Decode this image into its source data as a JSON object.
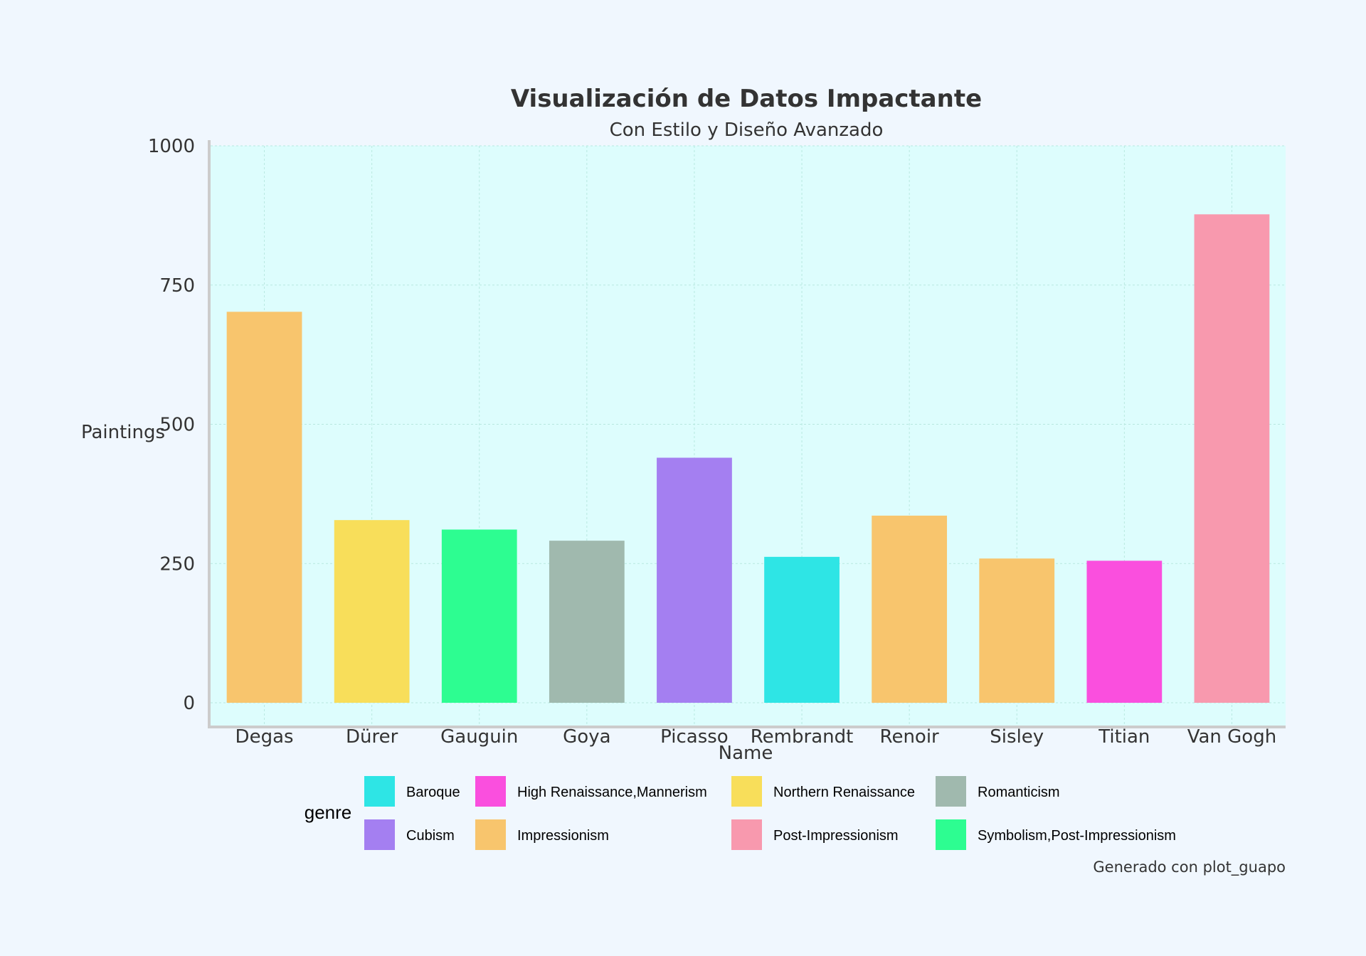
{
  "chart_data": {
    "type": "bar",
    "title": "Visualización de Datos Impactante",
    "subtitle": "Con Estilo y Diseño Avanzado",
    "xlabel": "Name",
    "ylabel": "Paintings",
    "ylim": [
      0,
      1000
    ],
    "yticks": [
      "0",
      "250",
      "500",
      "750",
      "1000"
    ],
    "grid": true,
    "categories": [
      "Degas",
      "Dürer",
      "Gauguin",
      "Goya",
      "Picasso",
      "Rembrandt",
      "Renoir",
      "Sisley",
      "Titian",
      "Van Gogh"
    ],
    "values": [
      702,
      328,
      311,
      291,
      440,
      262,
      336,
      259,
      255,
      877
    ],
    "genres": [
      "Impressionism",
      "Northern Renaissance",
      "Symbolism,Post-Impressionism",
      "Romanticism",
      "Cubism",
      "Baroque",
      "Impressionism",
      "Impressionism",
      "High Renaissance,Mannerism",
      "Post-Impressionism"
    ],
    "legend": {
      "title": "genre",
      "placement": "bottom",
      "items": [
        {
          "name": "Baroque",
          "color": "#2ee5e5"
        },
        {
          "name": "High Renaissance,Mannerism",
          "color": "#fa4fde"
        },
        {
          "name": "Northern Renaissance",
          "color": "#f8de5a"
        },
        {
          "name": "Romanticism",
          "color": "#a0b9ae"
        },
        {
          "name": "Cubism",
          "color": "#a47ff1"
        },
        {
          "name": "Impressionism",
          "color": "#f8c56d"
        },
        {
          "name": "Post-Impressionism",
          "color": "#f899ae"
        },
        {
          "name": "Symbolism,Post-Impressionism",
          "color": "#2dfd91"
        }
      ]
    },
    "caption": "Generado con plot_guapo"
  },
  "colors": {
    "page_background": "#f0f7fe",
    "plot_background": "#ddfdfd",
    "grid": "#b8e8e0",
    "axis_line": "#cccccc",
    "text": "#333333"
  }
}
